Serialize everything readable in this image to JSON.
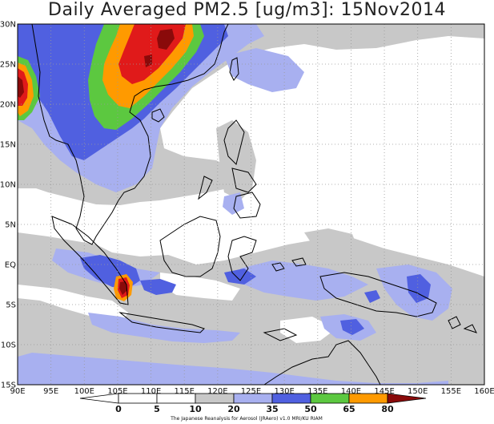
{
  "title": "Daily Averaged PM2.5 [ug/m3]: 15Nov2014",
  "credit": "The Japanese Reanalysis for Aerosol (JRAero) v1.0 MRI/KU RIAM",
  "map": {
    "lon_range": [
      90,
      160
    ],
    "lat_range": [
      -15,
      30
    ],
    "lat_labels": [
      "30N",
      "25N",
      "20N",
      "15N",
      "10N",
      "5N",
      "EQ",
      "5S",
      "10S",
      "15S"
    ],
    "lon_labels": [
      "90E",
      "95E",
      "100E",
      "105E",
      "110E",
      "115E",
      "120E",
      "125E",
      "130E",
      "135E",
      "140E",
      "145E",
      "150E",
      "155E",
      "160E"
    ],
    "grid": "dotted"
  },
  "colorbar": {
    "ticks": [
      "0",
      "5",
      "10",
      "20",
      "35",
      "50",
      "65",
      "80"
    ],
    "colors": {
      "lt5": "#ffffff",
      "b5_10": "#ffffff",
      "b10_20": "#c8c8c8",
      "b20_35": "#a8b0f0",
      "b35_50": "#5060e0",
      "b50_65": "#5cc840",
      "b65_80": "#ff9a00",
      "gt80_red": "#e01a1a",
      "gt80_dark": "#8a0a0a"
    }
  }
}
